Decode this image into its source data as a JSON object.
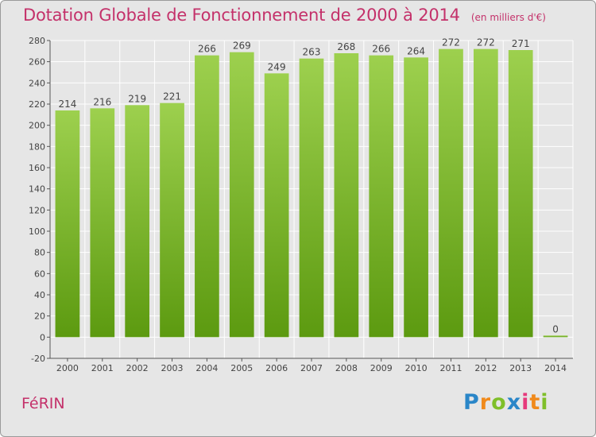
{
  "chart_data": {
    "type": "bar",
    "title": "Dotation Globale de Fonctionnement de 2000 à 2014",
    "unit_note": "(en milliers d'€)",
    "categories": [
      "2000",
      "2001",
      "2002",
      "2003",
      "2004",
      "2005",
      "2006",
      "2007",
      "2008",
      "2009",
      "2010",
      "2011",
      "2012",
      "2013",
      "2014"
    ],
    "values": [
      214,
      216,
      219,
      221,
      266,
      269,
      249,
      263,
      268,
      266,
      264,
      272,
      272,
      271,
      0
    ],
    "data_labels": [
      "214",
      "216",
      "219",
      "221",
      "266",
      "269",
      "249",
      "263",
      "268",
      "266",
      "264",
      "272",
      "272",
      "271",
      "0"
    ],
    "ylim": [
      -20,
      280
    ],
    "yticks": [
      -20,
      0,
      20,
      40,
      60,
      80,
      100,
      120,
      140,
      160,
      180,
      200,
      220,
      240,
      260,
      280
    ],
    "grid": true,
    "colors": {
      "bar_top": "#9dd04e",
      "bar_bottom": "#5c9a10",
      "grid": "#ffffff",
      "title": "#c4316a",
      "background": "#e6e6e6"
    }
  },
  "footer": {
    "commune": "FéRIN",
    "logo": {
      "letters": [
        "P",
        "r",
        "o",
        "x",
        "i",
        "t",
        "i"
      ]
    }
  }
}
